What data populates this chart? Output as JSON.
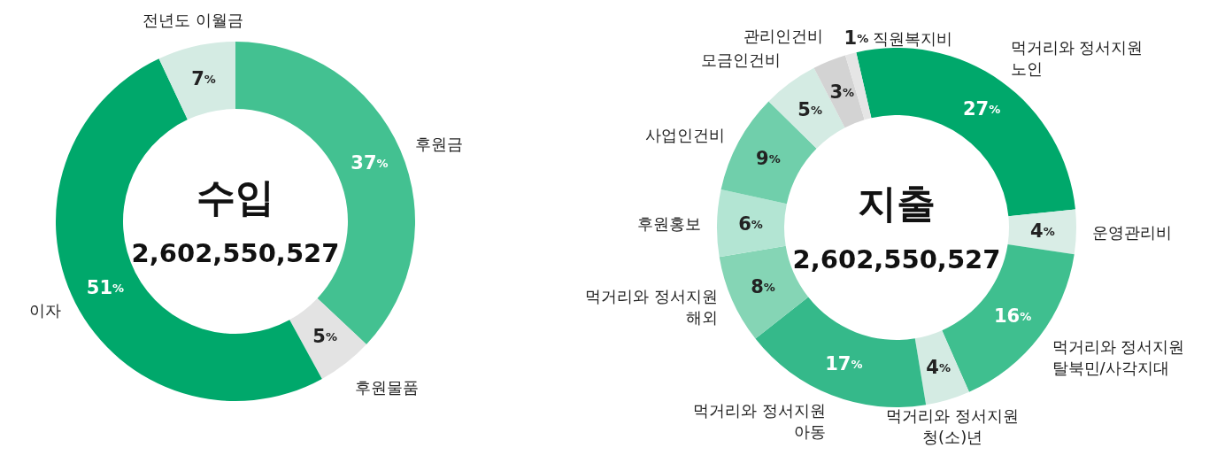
{
  "chart_data": [
    {
      "type": "donut",
      "title": "수입",
      "subtitle": "2,602,550,527",
      "categories": [
        "후원금",
        "후원물품",
        "이자",
        "전년도 이월금"
      ],
      "values": [
        37,
        5,
        51,
        7
      ],
      "value_labels": [
        "37%",
        "5%",
        "51%",
        "7%"
      ],
      "colors": [
        "#43c191",
        "#e3e3e3",
        "#00a86b",
        "#d4ebe3"
      ]
    },
    {
      "type": "donut",
      "title": "지출",
      "subtitle": "2,602,550,527",
      "categories": [
        "먹거리와 정서지원\n노인",
        "운영관리비",
        "먹거리와 정서지원\n탈북민/사각지대",
        "먹거리와 정서지원\n청(소)년",
        "먹거리와 정서지원\n아동",
        "먹거리와 정서지원\n해외",
        "후원홍보",
        "사업인건비",
        "모금인건비",
        "관리인건비",
        "직원복지비"
      ],
      "values": [
        27,
        4,
        16,
        4,
        17,
        8,
        6,
        9,
        5,
        3,
        1
      ],
      "value_labels": [
        "27%",
        "4%",
        "16%",
        "4%",
        "17%",
        "8%",
        "6%",
        "9%",
        "5%",
        "3%",
        "1%"
      ],
      "colors": [
        "#00a86b",
        "#d9ede6",
        "#3fbf8f",
        "#d4ebe3",
        "#35b98a",
        "#85d5b5",
        "#b3e5d3",
        "#70cfab",
        "#d4ebe3",
        "#d3d3d3",
        "#e5e5e5"
      ]
    }
  ]
}
